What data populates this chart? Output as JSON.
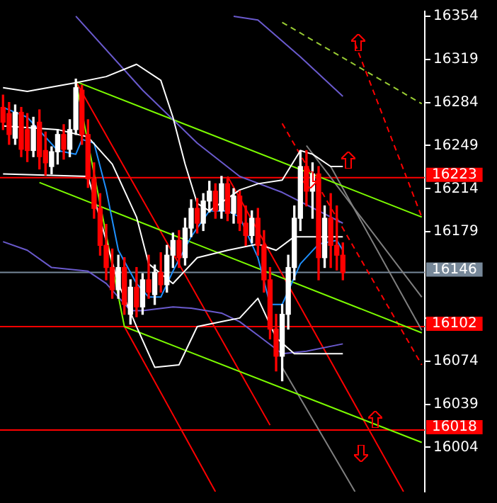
{
  "chart_data": {
    "type": "candlestick",
    "categories": [
      null,
      null,
      null,
      null,
      null,
      null,
      null,
      null,
      null,
      null,
      null,
      null,
      null,
      null,
      null,
      null,
      null,
      null,
      null,
      null,
      null,
      null,
      null,
      null,
      null,
      null,
      null,
      null,
      null,
      null,
      null,
      null,
      null,
      null,
      null,
      null,
      null,
      null,
      null,
      null,
      null,
      null,
      null,
      null,
      null,
      null,
      null,
      null,
      null,
      null,
      null,
      null,
      null,
      null,
      null,
      null,
      null,
      null,
      null,
      null,
      null,
      null,
      null,
      null,
      null,
      null,
      null,
      null,
      null,
      null
    ],
    "ohlc": [
      [
        16280,
        16290,
        16262,
        16268
      ],
      [
        16275,
        16284,
        16250,
        16258
      ],
      [
        16255,
        16282,
        16250,
        16276
      ],
      [
        16276,
        16280,
        16240,
        16246
      ],
      [
        16262,
        16275,
        16236,
        16245
      ],
      [
        16245,
        16272,
        16240,
        16265
      ],
      [
        16268,
        16278,
        16230,
        16240
      ],
      [
        16245,
        16260,
        16225,
        16235
      ],
      [
        16232,
        16248,
        16226,
        16244
      ],
      [
        16244,
        16262,
        16234,
        16258
      ],
      [
        16258,
        16266,
        16238,
        16246
      ],
      [
        16246,
        16270,
        16240,
        16262
      ],
      [
        16262,
        16303,
        16258,
        16296
      ],
      [
        16294,
        16298,
        16250,
        16258
      ],
      [
        16258,
        16270,
        16215,
        16222
      ],
      [
        16222,
        16235,
        16190,
        16198
      ],
      [
        16198,
        16210,
        16160,
        16168
      ],
      [
        16168,
        16185,
        16140,
        16150
      ],
      [
        16150,
        16165,
        16125,
        16132
      ],
      [
        16132,
        16160,
        16125,
        16150
      ],
      [
        16150,
        16158,
        16112,
        16120
      ],
      [
        16112,
        16140,
        16104,
        16134
      ],
      [
        16134,
        16150,
        16110,
        16118
      ],
      [
        16118,
        16145,
        16112,
        16140
      ],
      [
        16140,
        16160,
        16125,
        16130
      ],
      [
        16128,
        16152,
        16120,
        16146
      ],
      [
        16146,
        16162,
        16130,
        16136
      ],
      [
        16136,
        16168,
        16130,
        16160
      ],
      [
        16160,
        16178,
        16150,
        16172
      ],
      [
        16172,
        16180,
        16150,
        16158
      ],
      [
        16158,
        16190,
        16152,
        16182
      ],
      [
        16182,
        16205,
        16175,
        16198
      ],
      [
        16198,
        16206,
        16178,
        16186
      ],
      [
        16186,
        16210,
        16180,
        16204
      ],
      [
        16204,
        16220,
        16195,
        16212
      ],
      [
        16212,
        16218,
        16190,
        16196
      ],
      [
        16196,
        16224,
        16190,
        16218
      ],
      [
        16218,
        16222,
        16188,
        16194
      ],
      [
        16194,
        16214,
        16186,
        16208
      ],
      [
        16208,
        16212,
        16180,
        16186
      ],
      [
        16186,
        16200,
        16168,
        16176
      ],
      [
        16176,
        16196,
        16170,
        16190
      ],
      [
        16190,
        16198,
        16160,
        16168
      ],
      [
        16168,
        16180,
        16130,
        16140
      ],
      [
        16140,
        16150,
        16092,
        16100
      ],
      [
        16100,
        16112,
        16066,
        16078
      ],
      [
        16078,
        16120,
        16058,
        16112
      ],
      [
        16112,
        16160,
        16100,
        16150
      ],
      [
        16150,
        16200,
        16140,
        16190
      ],
      [
        16190,
        16245,
        16180,
        16232
      ],
      [
        16232,
        16245,
        16200,
        16212
      ],
      [
        16212,
        16235,
        16190,
        16226
      ],
      [
        16226,
        16232,
        16140,
        16158
      ],
      [
        16158,
        16200,
        16150,
        16190
      ],
      [
        16190,
        16210,
        16150,
        16168
      ],
      [
        16168,
        16200,
        16148,
        16160
      ],
      [
        16160,
        16170,
        16140,
        16146
      ],
      null,
      null,
      null,
      null,
      null,
      null,
      null,
      null,
      null,
      null,
      null,
      null,
      null
    ],
    "colors": [
      "#ff0000",
      "#ff0000",
      "#ffffff",
      "#ff0000",
      "#ff0000",
      "#ffffff",
      "#ff0000",
      "#ff0000",
      "#ffffff",
      "#ffffff",
      "#ff0000",
      "#ffffff",
      "#ffffff",
      "#ff0000",
      "#ff0000",
      "#ff0000",
      "#ff0000",
      "#ff0000",
      "#ff0000",
      "#ffffff",
      "#ff0000",
      "#ffffff",
      "#ff0000",
      "#ffffff",
      "#ff0000",
      "#ffffff",
      "#ff0000",
      "#ffffff",
      "#ffffff",
      "#ff0000",
      "#ffffff",
      "#ffffff",
      "#ff0000",
      "#ffffff",
      "#ffffff",
      "#ff0000",
      "#ffffff",
      "#ff0000",
      "#ffffff",
      "#ff0000",
      "#ff0000",
      "#ffffff",
      "#ff0000",
      "#ff0000",
      "#ff0000",
      "#ff0000",
      "#ffffff",
      "#ffffff",
      "#ffffff",
      "#ffffff",
      "#ff0000",
      "#ffffff",
      "#ff0000",
      "#ffffff",
      "#ff0000",
      "#ff0000",
      "#ff0000",
      null,
      null,
      null,
      null,
      null,
      null,
      null,
      null,
      null,
      null,
      null,
      null,
      null
    ],
    "series": [
      {
        "type": "line",
        "color": "#ffffff",
        "values": [
          16296,
          null,
          null,
          null,
          16293,
          null,
          null,
          null,
          null,
          null,
          null,
          null,
          16300,
          null,
          null,
          null,
          null,
          16305,
          null,
          null,
          null,
          null,
          16315,
          null,
          null,
          null,
          16302,
          null,
          16272,
          null,
          16234,
          null,
          16202,
          null,
          16196,
          null,
          null,
          null,
          null,
          16213,
          null,
          null,
          16218,
          null,
          null,
          null,
          16221,
          null,
          null,
          16245,
          null,
          16242,
          null,
          null,
          16232,
          null,
          16232,
          null,
          null,
          null,
          null,
          null,
          null,
          null,
          null,
          null,
          null,
          null,
          null,
          null
        ]
      },
      {
        "type": "line",
        "color": "#ffffff",
        "values": [
          16265,
          null,
          null,
          null,
          null,
          null,
          null,
          null,
          null,
          16262,
          null,
          null,
          null,
          null,
          16256,
          null,
          null,
          null,
          16234,
          null,
          null,
          null,
          16191,
          null,
          16153,
          null,
          null,
          null,
          16137,
          null,
          null,
          null,
          16158,
          null,
          null,
          null,
          null,
          16164,
          null,
          null,
          null,
          null,
          16169,
          null,
          null,
          16164,
          null,
          null,
          16175,
          null,
          null,
          16175,
          null,
          null,
          null,
          null,
          16175,
          null,
          null,
          null,
          null,
          null,
          null,
          null,
          null,
          null,
          null,
          null,
          null,
          null
        ]
      },
      {
        "type": "line",
        "color": "#ffffff",
        "values": [
          16226,
          null,
          null,
          null,
          null,
          null,
          null,
          null,
          null,
          null,
          null,
          null,
          null,
          null,
          16224,
          null,
          null,
          null,
          null,
          16137,
          null,
          null,
          16102,
          null,
          null,
          16069,
          null,
          null,
          null,
          16071,
          null,
          null,
          16102,
          null,
          null,
          null,
          16106,
          null,
          null,
          16109,
          null,
          null,
          16125,
          null,
          null,
          16093,
          null,
          null,
          16080,
          null,
          null,
          null,
          null,
          null,
          null,
          null,
          16080,
          null,
          null,
          null,
          null,
          null,
          null,
          null,
          null,
          null,
          null,
          null,
          null,
          null
        ]
      },
      {
        "type": "line",
        "color": "#1e90ff",
        "values": [
          16280,
          null,
          null,
          null,
          16272,
          null,
          null,
          null,
          null,
          16245,
          null,
          null,
          16242,
          16254,
          null,
          16251,
          null,
          16213,
          null,
          16164,
          null,
          null,
          16137,
          null,
          16126,
          null,
          16126,
          null,
          16147,
          null,
          null,
          16175,
          null,
          null,
          16196,
          null,
          null,
          16196,
          null,
          16191,
          null,
          null,
          16158,
          null,
          16120,
          null,
          16120,
          null,
          null,
          16153,
          null,
          null,
          16169,
          null,
          null,
          16172,
          16164,
          null,
          null,
          null,
          null,
          null,
          null,
          null,
          null,
          null,
          null,
          null,
          null,
          null
        ]
      },
      {
        "type": "line",
        "color": "#6a5acd",
        "values": [
          16171,
          null,
          null,
          null,
          16164,
          null,
          null,
          null,
          16150,
          null,
          null,
          null,
          null,
          null,
          16147,
          null,
          null,
          16137,
          null,
          null,
          null,
          16115,
          null,
          16115,
          null,
          null,
          null,
          null,
          16118,
          null,
          null,
          16117,
          null,
          null,
          null,
          null,
          16113,
          null,
          null,
          16106,
          null,
          null,
          16095,
          null,
          null,
          null,
          16080,
          null,
          null,
          null,
          16082,
          null,
          null,
          null,
          null,
          null,
          16088,
          null,
          null,
          null,
          null,
          null,
          null,
          null,
          null,
          null,
          null,
          null,
          null,
          null
        ]
      },
      {
        "type": "line",
        "color": "#6a5acd",
        "values": [
          null,
          null,
          null,
          null,
          null,
          null,
          null,
          null,
          null,
          null,
          null,
          null,
          16354,
          null,
          null,
          null,
          null,
          null,
          null,
          null,
          null,
          null,
          null,
          16294,
          null,
          null,
          null,
          null,
          null,
          null,
          null,
          null,
          16251,
          null,
          null,
          null,
          null,
          null,
          null,
          16224,
          null,
          null,
          null,
          null,
          null,
          null,
          16211,
          null,
          null,
          null,
          null,
          null,
          null,
          null,
          null,
          null,
          16186,
          null,
          null,
          null,
          null,
          null,
          null,
          null,
          null,
          null,
          null,
          null,
          null,
          null
        ]
      },
      {
        "type": "line",
        "color": "#6a5acd",
        "values": [
          null,
          null,
          null,
          null,
          null,
          null,
          null,
          null,
          null,
          null,
          null,
          null,
          null,
          null,
          null,
          null,
          null,
          null,
          null,
          null,
          null,
          null,
          null,
          null,
          null,
          null,
          null,
          null,
          null,
          null,
          null,
          null,
          null,
          null,
          null,
          null,
          null,
          null,
          16354,
          null,
          null,
          null,
          16351,
          null,
          null,
          null,
          null,
          null,
          null,
          16321,
          null,
          null,
          null,
          null,
          null,
          null,
          16289,
          null,
          null,
          null,
          null,
          null,
          null,
          null,
          null,
          null,
          null,
          null,
          null,
          null
        ]
      },
      {
        "type": "line",
        "color": "#7cfc00",
        "values": [
          null,
          null,
          null,
          null,
          null,
          null,
          null,
          null,
          null,
          null,
          null,
          null,
          16301,
          null,
          null,
          null,
          null,
          null,
          null,
          null,
          null,
          null,
          null,
          null,
          null,
          null,
          null,
          null,
          null,
          null,
          null,
          null,
          null,
          null,
          null,
          null,
          null,
          null,
          null,
          null,
          null,
          null,
          null,
          null,
          null,
          null,
          null,
          null,
          null,
          null,
          null,
          null,
          null,
          null,
          null,
          null,
          null,
          null,
          null,
          null,
          null,
          null,
          null,
          null,
          null,
          null,
          null,
          null,
          null,
          16191
        ]
      },
      {
        "type": "line",
        "color": "#7cfc00",
        "values": [
          null,
          null,
          null,
          null,
          null,
          null,
          null,
          null,
          null,
          null,
          null,
          null,
          16301,
          null,
          null,
          null,
          null,
          null,
          null,
          null,
          16102,
          null,
          null,
          null,
          null,
          null,
          null,
          null,
          null,
          null,
          null,
          null,
          null,
          null,
          null,
          null,
          null,
          null,
          null,
          null,
          null,
          null,
          null,
          null,
          null,
          null,
          null,
          null,
          null,
          null,
          null,
          null,
          null,
          null,
          null,
          null,
          null,
          null,
          null,
          null,
          null,
          null,
          null,
          null,
          null,
          null,
          null,
          null,
          null,
          null
        ]
      },
      {
        "type": "line",
        "color": "#7cfc00",
        "values": [
          null,
          null,
          null,
          null,
          null,
          null,
          null,
          null,
          null,
          null,
          null,
          null,
          null,
          null,
          null,
          null,
          null,
          null,
          null,
          null,
          16102,
          null,
          null,
          null,
          null,
          null,
          null,
          null,
          null,
          null,
          null,
          null,
          null,
          null,
          null,
          null,
          null,
          null,
          null,
          null,
          null,
          null,
          null,
          null,
          null,
          null,
          null,
          null,
          null,
          null,
          null,
          null,
          null,
          null,
          null,
          null,
          null,
          null,
          null,
          null,
          null,
          null,
          null,
          null,
          null,
          null,
          null,
          null,
          null,
          16008
        ]
      },
      {
        "type": "line",
        "color": "#7cfc00",
        "values": [
          null,
          null,
          null,
          null,
          null,
          null,
          16219,
          null,
          null,
          null,
          null,
          null,
          null,
          null,
          null,
          null,
          null,
          null,
          null,
          null,
          null,
          null,
          null,
          null,
          null,
          null,
          null,
          null,
          null,
          null,
          null,
          null,
          null,
          null,
          null,
          null,
          null,
          null,
          null,
          null,
          null,
          null,
          null,
          null,
          null,
          null,
          null,
          null,
          null,
          null,
          null,
          null,
          null,
          null,
          null,
          null,
          null,
          null,
          null,
          null,
          null,
          null,
          null,
          null,
          null,
          null,
          null,
          null,
          null,
          16097
        ]
      },
      {
        "type": "line",
        "color": "#99cc33",
        "line_style": "dashed",
        "values": [
          null,
          null,
          null,
          null,
          null,
          null,
          null,
          null,
          null,
          null,
          null,
          null,
          null,
          null,
          null,
          null,
          null,
          null,
          null,
          null,
          null,
          null,
          null,
          null,
          null,
          null,
          null,
          null,
          null,
          null,
          null,
          null,
          null,
          null,
          null,
          null,
          null,
          null,
          null,
          null,
          null,
          null,
          null,
          null,
          null,
          null,
          16349,
          null,
          null,
          null,
          null,
          null,
          null,
          null,
          null,
          null,
          null,
          null,
          null,
          null,
          null,
          null,
          null,
          null,
          null,
          null,
          null,
          null,
          null,
          16283
        ]
      },
      {
        "type": "line",
        "color": "#ff0000",
        "values": [
          null,
          null,
          null,
          null,
          null,
          null,
          null,
          null,
          null,
          null,
          null,
          null,
          16301,
          null,
          null,
          null,
          null,
          null,
          null,
          null,
          null,
          null,
          null,
          null,
          null,
          null,
          null,
          null,
          null,
          null,
          null,
          null,
          null,
          null,
          null,
          null,
          null,
          null,
          null,
          null,
          null,
          null,
          null,
          null,
          16022,
          null,
          null,
          null,
          null,
          null,
          null,
          null,
          null,
          null,
          null,
          null,
          null,
          null,
          null,
          null,
          null,
          null,
          null,
          null,
          null,
          null,
          null,
          null,
          null,
          null
        ]
      },
      {
        "type": "line",
        "color": "#ff0000",
        "values": [
          null,
          null,
          null,
          null,
          null,
          null,
          null,
          null,
          null,
          null,
          null,
          null,
          null,
          null,
          null,
          null,
          null,
          null,
          null,
          null,
          null,
          null,
          null,
          null,
          null,
          null,
          null,
          null,
          null,
          null,
          null,
          null,
          null,
          null,
          null,
          null,
          null,
          16224,
          null,
          null,
          null,
          null,
          null,
          null,
          null,
          null,
          null,
          null,
          null,
          null,
          null,
          null,
          null,
          null,
          null,
          null,
          null,
          null,
          null,
          null,
          null,
          null,
          null,
          null,
          null,
          null,
          15968,
          null,
          null,
          null
        ]
      },
      {
        "type": "line",
        "color": "#ff0000",
        "values": [
          null,
          null,
          null,
          null,
          null,
          null,
          null,
          null,
          null,
          null,
          null,
          null,
          null,
          null,
          null,
          null,
          null,
          null,
          null,
          null,
          16102,
          null,
          null,
          null,
          null,
          null,
          null,
          null,
          null,
          null,
          null,
          null,
          null,
          null,
          null,
          15968,
          null,
          null,
          null,
          null,
          null,
          null,
          null,
          null,
          null,
          null,
          null,
          null,
          null,
          null,
          null,
          null,
          null,
          null,
          null,
          null,
          null,
          null,
          null,
          null,
          null,
          null,
          null,
          null,
          null,
          null,
          null,
          null,
          null,
          null
        ]
      },
      {
        "type": "line",
        "color": "#ff0000",
        "line_style": "dashed",
        "values": [
          null,
          null,
          null,
          null,
          null,
          null,
          null,
          null,
          null,
          null,
          null,
          null,
          null,
          null,
          null,
          null,
          null,
          null,
          null,
          null,
          null,
          null,
          null,
          null,
          null,
          null,
          null,
          null,
          null,
          null,
          null,
          null,
          null,
          null,
          null,
          null,
          null,
          null,
          null,
          null,
          null,
          null,
          null,
          null,
          null,
          null,
          16267,
          null,
          null,
          null,
          null,
          null,
          null,
          null,
          null,
          null,
          null,
          null,
          null,
          null,
          null,
          null,
          null,
          null,
          null,
          null,
          null,
          null,
          null,
          16071
        ]
      },
      {
        "type": "line",
        "color": "#ff0000",
        "line_style": "dashed",
        "values": [
          null,
          null,
          null,
          null,
          null,
          null,
          null,
          null,
          null,
          null,
          null,
          null,
          null,
          null,
          null,
          null,
          null,
          null,
          null,
          null,
          null,
          null,
          null,
          null,
          null,
          null,
          null,
          null,
          null,
          null,
          null,
          null,
          null,
          null,
          null,
          null,
          null,
          null,
          null,
          null,
          null,
          null,
          null,
          null,
          null,
          null,
          null,
          null,
          null,
          null,
          null,
          null,
          null,
          null,
          null,
          null,
          null,
          null,
          16332,
          null,
          null,
          null,
          null,
          null,
          null,
          null,
          null,
          null,
          null,
          16191
        ]
      },
      {
        "type": "line",
        "color": "#808080",
        "values": [
          null,
          null,
          null,
          null,
          null,
          null,
          null,
          null,
          null,
          null,
          null,
          null,
          null,
          null,
          null,
          null,
          null,
          null,
          null,
          null,
          null,
          null,
          null,
          null,
          null,
          null,
          null,
          null,
          null,
          null,
          null,
          null,
          null,
          null,
          null,
          null,
          null,
          null,
          null,
          null,
          null,
          null,
          null,
          null,
          null,
          null,
          null,
          null,
          null,
          null,
          16249,
          null,
          null,
          null,
          null,
          null,
          null,
          null,
          null,
          null,
          null,
          null,
          null,
          null,
          null,
          null,
          null,
          null,
          null,
          16126
        ]
      },
      {
        "type": "line",
        "color": "#808080",
        "values": [
          null,
          null,
          null,
          null,
          null,
          null,
          null,
          null,
          null,
          null,
          null,
          null,
          null,
          null,
          null,
          null,
          null,
          null,
          null,
          null,
          null,
          null,
          null,
          null,
          null,
          null,
          null,
          null,
          null,
          null,
          null,
          null,
          null,
          null,
          null,
          null,
          null,
          null,
          null,
          null,
          null,
          null,
          null,
          null,
          null,
          null,
          null,
          null,
          null,
          null,
          null,
          null,
          null,
          null,
          16232,
          null,
          null,
          null,
          null,
          null,
          null,
          null,
          null,
          null,
          null,
          null,
          null,
          null,
          null,
          16099
        ]
      },
      {
        "type": "line",
        "color": "#808080",
        "values": [
          null,
          null,
          null,
          null,
          null,
          null,
          null,
          null,
          null,
          null,
          null,
          null,
          null,
          null,
          null,
          null,
          null,
          null,
          null,
          null,
          null,
          null,
          null,
          null,
          null,
          null,
          null,
          null,
          null,
          null,
          null,
          null,
          null,
          null,
          null,
          null,
          null,
          null,
          null,
          null,
          null,
          null,
          null,
          null,
          null,
          null,
          16069,
          null,
          null,
          null,
          null,
          null,
          null,
          null,
          null,
          null,
          null,
          null,
          15968,
          null,
          null,
          null,
          null,
          null,
          null,
          null,
          null,
          null,
          null,
          null
        ]
      }
    ],
    "ylim": [
      15968,
      16358
    ],
    "yticks": [
      16004,
      16039,
      16074,
      {
        "value": 16109,
        "label": null
      },
      16179,
      16214,
      16249,
      16284,
      16319,
      16354
    ],
    "ref_lines": [
      {
        "axis": "y",
        "value": 16223,
        "label": "16223",
        "color": "#ff0000"
      },
      {
        "axis": "y",
        "value": 16146,
        "label": "16146",
        "color": "#778899"
      },
      {
        "axis": "y",
        "value": 16102,
        "label": "16102",
        "color": "#ff0000"
      },
      {
        "axis": "y",
        "value": 16018,
        "label": "16018",
        "color": "#ff0000"
      }
    ],
    "grid": false,
    "legend": false,
    "tick_labels": "y"
  }
}
